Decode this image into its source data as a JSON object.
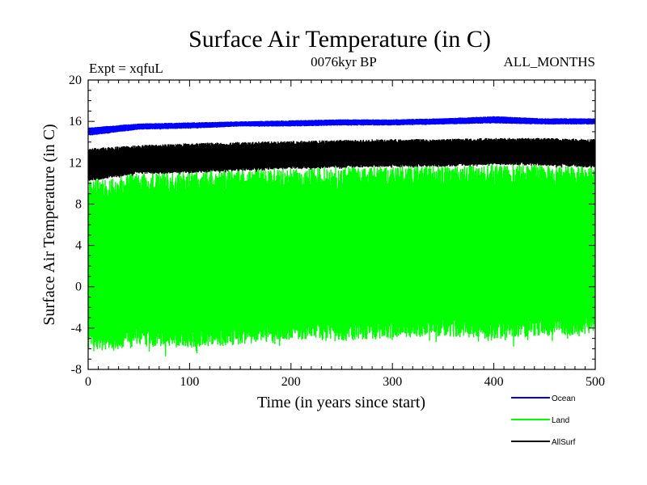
{
  "chart_data": {
    "type": "line",
    "title": "Surface Air Temperature (in C)",
    "subtitle_left": "Expt = xqfuL",
    "subtitle_center": "0076kyr BP",
    "subtitle_right": "ALL_MONTHS",
    "xlabel": "Time (in years since start)",
    "ylabel": "Surface Air Temperature (in C)",
    "xlim": [
      0,
      500
    ],
    "ylim": [
      -8,
      20
    ],
    "xticks": [
      0,
      100,
      200,
      300,
      400,
      500
    ],
    "yticks": [
      -8,
      -4,
      0,
      4,
      8,
      12,
      16,
      20
    ],
    "x_tick_labels": [
      "0",
      "100",
      "200",
      "300",
      "400",
      "500"
    ],
    "y_tick_labels": [
      "-8",
      "-4",
      "0",
      "4",
      "8",
      "12",
      "16",
      "20"
    ],
    "grid": false,
    "legend_position": "bottom-right, outside plot",
    "series": [
      {
        "name": "Ocean",
        "color": "#0000ff",
        "x": [
          0,
          50,
          100,
          150,
          200,
          250,
          300,
          350,
          400,
          450,
          500
        ],
        "low": [
          14.6,
          15.2,
          15.3,
          15.5,
          15.5,
          15.6,
          15.6,
          15.7,
          15.8,
          15.7,
          15.7
        ],
        "high": [
          15.4,
          15.8,
          15.9,
          16.0,
          16.1,
          16.2,
          16.2,
          16.3,
          16.5,
          16.3,
          16.3
        ]
      },
      {
        "name": "Land",
        "color": "#00ff00",
        "x": [
          0,
          50,
          100,
          150,
          200,
          250,
          300,
          350,
          400,
          450,
          500
        ],
        "low": [
          -6.3,
          -5.8,
          -5.9,
          -5.6,
          -5.2,
          -5.3,
          -5.0,
          -4.8,
          -5.1,
          -4.7,
          -4.7
        ],
        "high": [
          10.4,
          11.0,
          11.2,
          11.3,
          11.5,
          11.6,
          11.7,
          11.7,
          11.9,
          11.8,
          11.6
        ]
      },
      {
        "name": "AllSurf",
        "color": "#000000",
        "x": [
          0,
          50,
          100,
          150,
          200,
          250,
          300,
          350,
          400,
          450,
          500
        ],
        "low": [
          10.2,
          10.9,
          11.0,
          11.2,
          11.4,
          11.5,
          11.6,
          11.6,
          11.8,
          11.7,
          11.5
        ],
        "high": [
          13.4,
          13.7,
          13.9,
          14.0,
          14.1,
          14.2,
          14.3,
          14.3,
          14.4,
          14.4,
          14.3
        ]
      }
    ]
  }
}
